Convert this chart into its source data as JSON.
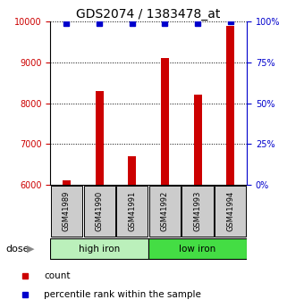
{
  "title": "GDS2074 / 1383478_at",
  "samples": [
    "GSM41989",
    "GSM41990",
    "GSM41991",
    "GSM41992",
    "GSM41993",
    "GSM41994"
  ],
  "counts": [
    6100,
    8300,
    6700,
    9100,
    8200,
    9900
  ],
  "percentiles": [
    99,
    99,
    99,
    99,
    99,
    100
  ],
  "ylim_left": [
    6000,
    10000
  ],
  "ylim_right": [
    0,
    100
  ],
  "yticks_left": [
    6000,
    7000,
    8000,
    9000,
    10000
  ],
  "yticks_right": [
    0,
    25,
    50,
    75,
    100
  ],
  "groups": [
    {
      "label": "high iron",
      "indices": [
        0,
        1,
        2
      ],
      "color": "#bbf0bb"
    },
    {
      "label": "low iron",
      "indices": [
        3,
        4,
        5
      ],
      "color": "#44dd44"
    }
  ],
  "bar_color": "#cc0000",
  "marker_color": "#0000cc",
  "bar_width": 0.25,
  "title_fontsize": 10,
  "tick_fontsize": 7,
  "axis_color_left": "#cc0000",
  "axis_color_right": "#0000cc",
  "bg_color": "#ffffff",
  "sample_box_color": "#cccccc",
  "dose_label": "dose",
  "legend_count": "count",
  "legend_percentile": "percentile rank within the sample"
}
